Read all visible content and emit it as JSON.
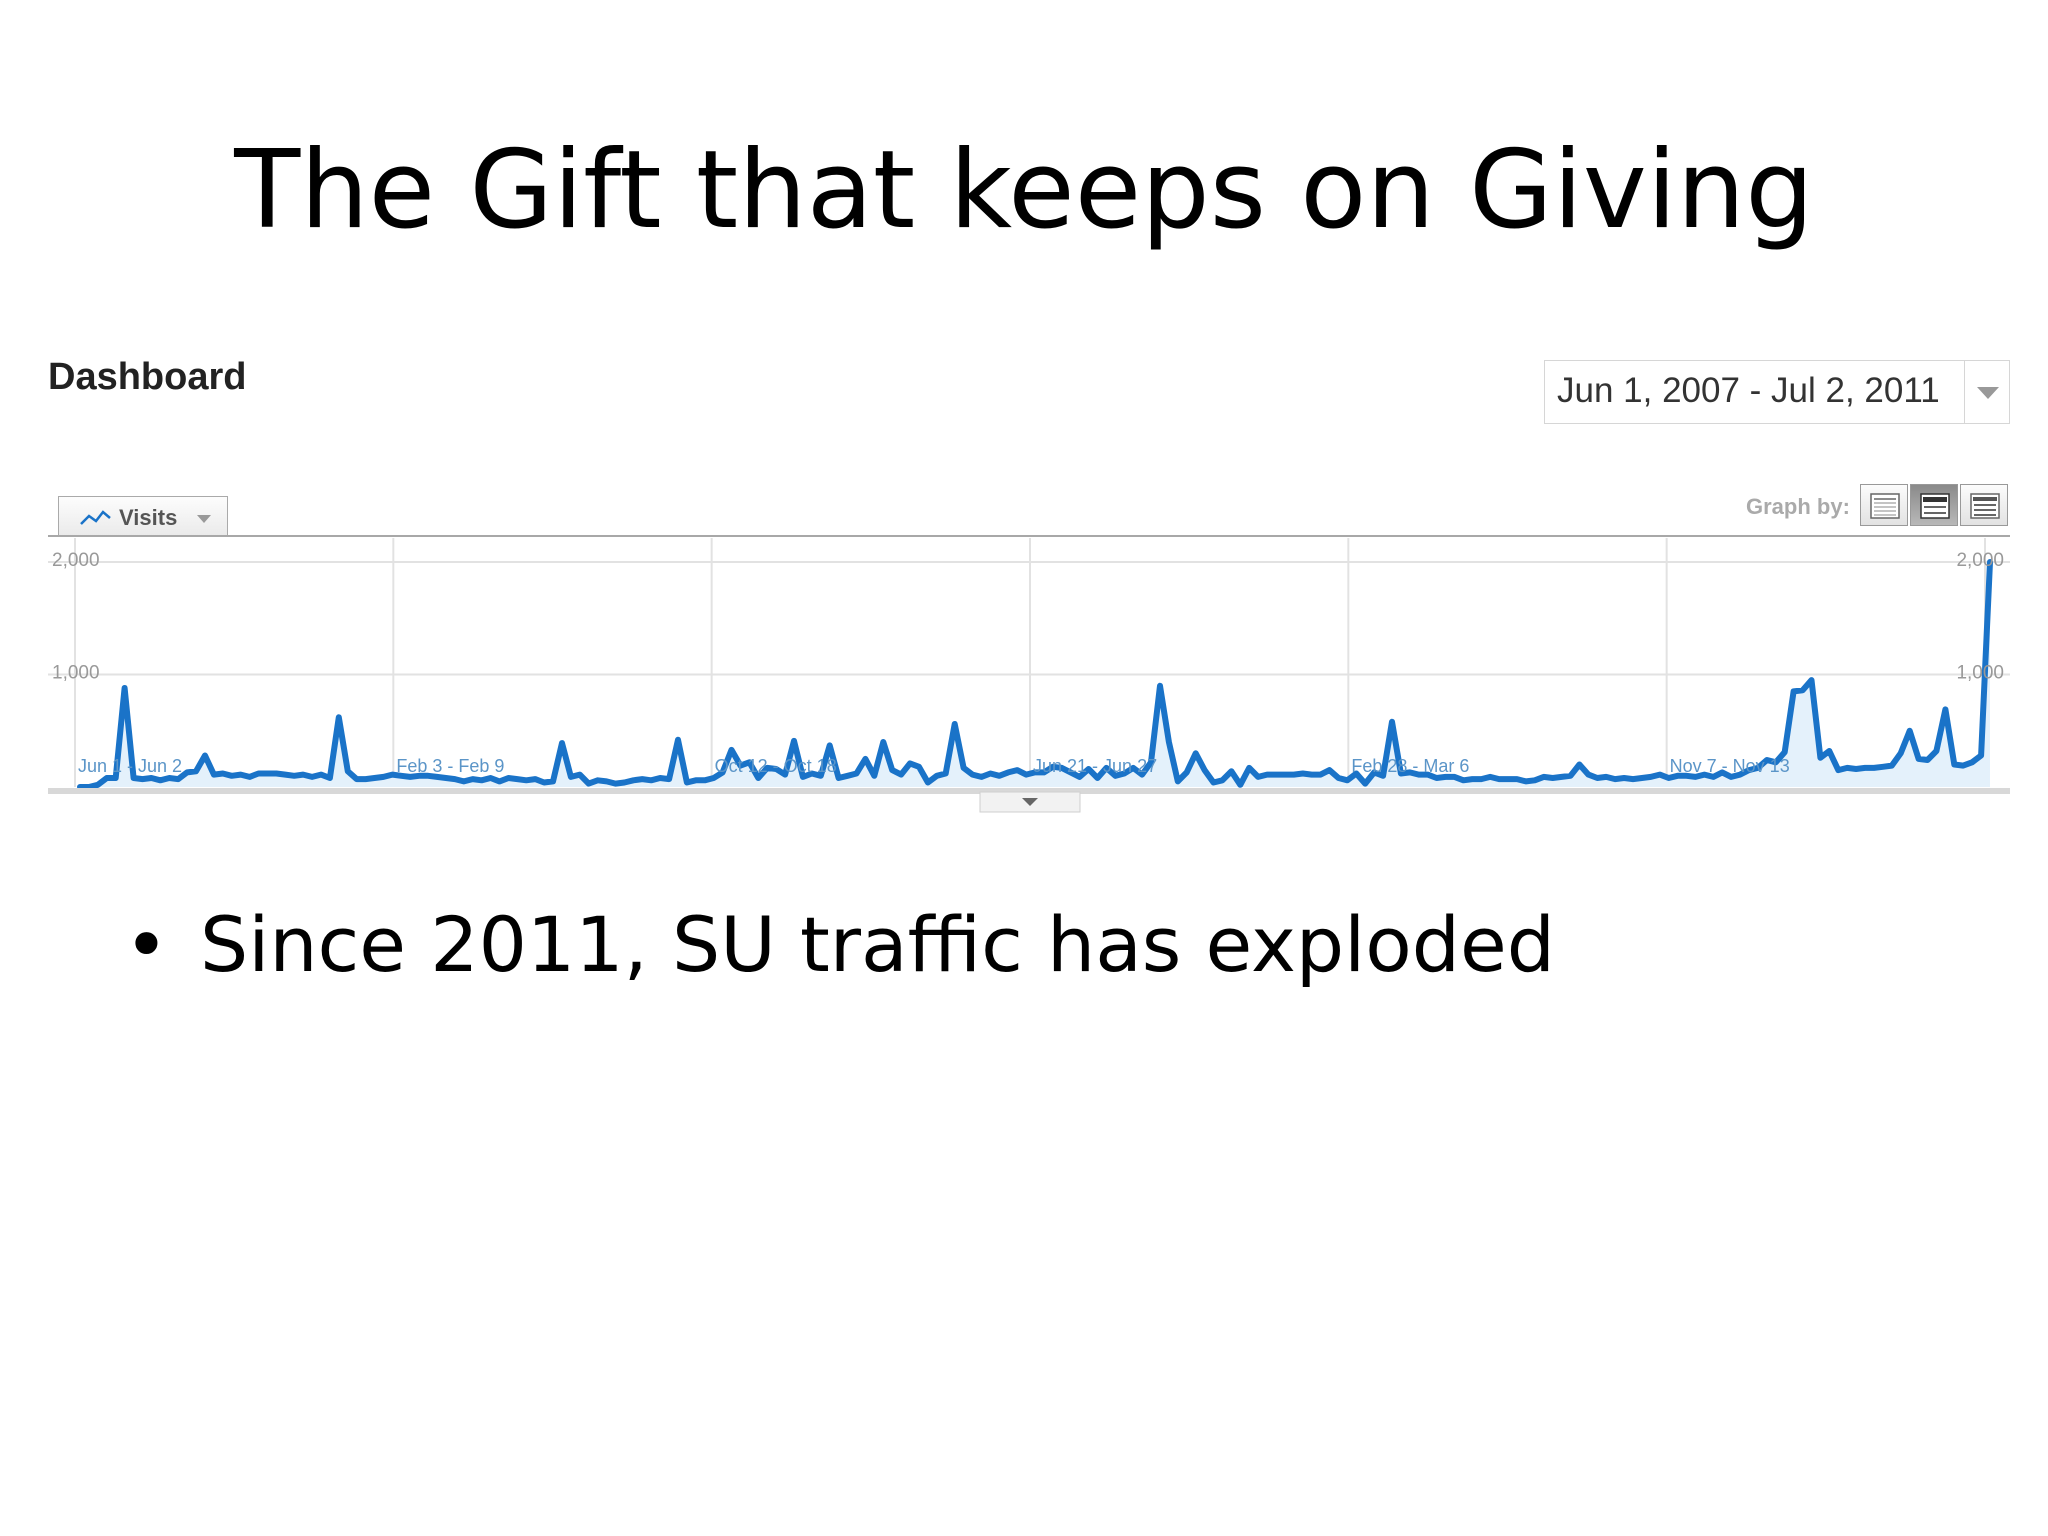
{
  "slide": {
    "title": "The Gift that keeps on Giving",
    "bullet_marker": "•",
    "bullet_text": "Since 2011, SU traffic has exploded"
  },
  "dashboard": {
    "title": "Dashboard",
    "date_range": "Jun 1, 2007 - Jul 2, 2011",
    "metric_tab": "Visits",
    "graph_by_label": "Graph by:",
    "graph_by_options": [
      "Day",
      "Week",
      "Month"
    ],
    "graph_by_selected": "Week",
    "colors": {
      "line": "#1a73c8",
      "area": "#e4f1fb",
      "grid": "#e2e2e2",
      "axis_text": "#999999",
      "date_label": "#5b95c8"
    }
  },
  "chart_data": {
    "type": "area",
    "metric": "Visits",
    "ylim": [
      0,
      2000
    ],
    "y_ticks_left": [
      "2,000",
      "1,000"
    ],
    "y_ticks_right": [
      "2,000",
      "1,000"
    ],
    "y_tick_values": [
      2000,
      1000
    ],
    "grid": true,
    "x_labels": [
      "Jun 1 - Jun 2",
      "Feb 3 - Feb 9",
      "Oct 12 - Oct 18",
      "Jun 21 - Jun 27",
      "Feb 28 - Mar 6",
      "Nov 7 - Nov 13"
    ],
    "values": [
      0,
      0,
      20,
      80,
      80,
      880,
      80,
      70,
      80,
      60,
      80,
      70,
      130,
      140,
      280,
      110,
      120,
      100,
      110,
      90,
      120,
      120,
      120,
      110,
      100,
      110,
      90,
      110,
      80,
      620,
      140,
      70,
      70,
      80,
      90,
      110,
      100,
      90,
      100,
      100,
      90,
      80,
      70,
      50,
      70,
      60,
      80,
      50,
      80,
      70,
      60,
      70,
      40,
      50,
      390,
      90,
      110,
      30,
      60,
      50,
      30,
      40,
      60,
      70,
      60,
      80,
      70,
      420,
      40,
      60,
      60,
      80,
      130,
      330,
      190,
      220,
      80,
      170,
      160,
      110,
      410,
      90,
      120,
      100,
      370,
      80,
      100,
      120,
      250,
      100,
      400,
      150,
      110,
      210,
      180,
      40,
      100,
      120,
      560,
      170,
      110,
      90,
      120,
      100,
      130,
      150,
      110,
      130,
      130,
      180,
      170,
      130,
      90,
      160,
      80,
      170,
      100,
      120,
      170,
      110,
      220,
      900,
      400,
      50,
      130,
      300,
      150,
      40,
      60,
      140,
      20,
      170,
      90,
      110,
      110,
      110,
      110,
      120,
      110,
      110,
      150,
      80,
      60,
      120,
      30,
      130,
      100,
      580,
      120,
      130,
      110,
      110,
      80,
      90,
      90,
      60,
      70,
      70,
      90,
      70,
      70,
      70,
      50,
      60,
      90,
      80,
      90,
      100,
      200,
      110,
      80,
      90,
      70,
      80,
      70,
      80,
      90,
      110,
      80,
      100,
      100,
      90,
      110,
      90,
      130,
      90,
      110,
      150,
      170,
      240,
      220,
      310,
      850,
      860,
      950,
      260,
      320,
      150,
      170,
      160,
      170,
      170,
      180,
      190,
      300,
      500,
      250,
      240,
      320,
      690,
      200,
      190,
      220,
      280,
      2000
    ]
  }
}
